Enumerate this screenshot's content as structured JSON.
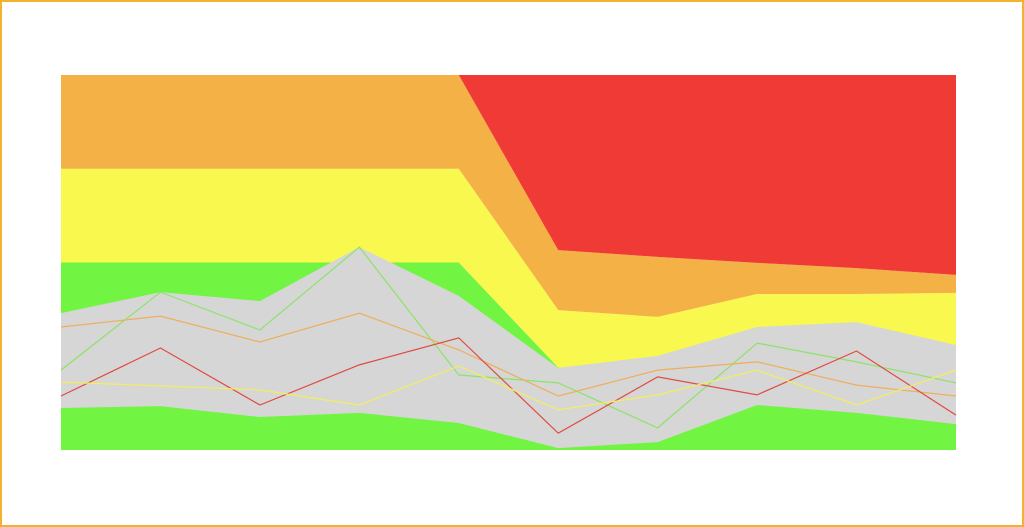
{
  "chart_data": {
    "type": "area",
    "categories": [
      null,
      null,
      null,
      null,
      null,
      null,
      null,
      null,
      null,
      null
    ],
    "ylim": [
      0,
      100
    ],
    "stack": [
      {
        "color": "#72f542",
        "values": [
          50,
          50,
          50,
          50,
          50,
          22,
          22,
          25,
          25,
          25
        ]
      },
      {
        "color": "#f9f84f",
        "values": [
          25,
          25,
          25,
          25,
          25,
          15.3,
          13.5,
          16.6,
          16.6,
          16.9
        ]
      },
      {
        "color": "#f4b145",
        "values": [
          25,
          25,
          25,
          25,
          25,
          16,
          16,
          8.3,
          6.9,
          4.8
        ]
      },
      {
        "color": "#ef3a35",
        "values": [
          0,
          0,
          0,
          0,
          0,
          46.7,
          48.5,
          50.1,
          51.5,
          53.3
        ]
      }
    ],
    "band": {
      "color": "#d6d6d6",
      "high": [
        36.5,
        42.1,
        39.7,
        54.1,
        41.1,
        21.9,
        25.1,
        32.8,
        34.1,
        28.0
      ],
      "low": [
        11.2,
        11.7,
        8.8,
        9.9,
        7.2,
        0.5,
        2.1,
        12,
        9.9,
        6.9
      ]
    },
    "series": [
      {
        "color": "#8de36a",
        "values": [
          21.3,
          42.1,
          32,
          54.1,
          20,
          17.9,
          5.9,
          28.5,
          23.5,
          17.9
        ]
      },
      {
        "color": "#eeae5c",
        "values": [
          32.8,
          35.7,
          28.8,
          36.5,
          26.7,
          14.4,
          21.3,
          23.5,
          17.3,
          14.4
        ]
      },
      {
        "color": "#e04a40",
        "values": [
          14.4,
          27.2,
          12,
          22.7,
          29.9,
          4.5,
          19.5,
          14.7,
          26.4,
          9.3
        ]
      },
      {
        "color": "#f3ee5e",
        "values": [
          18.1,
          17.1,
          16,
          12,
          22.4,
          10.7,
          14.7,
          21.3,
          12,
          21.3
        ]
      }
    ]
  }
}
